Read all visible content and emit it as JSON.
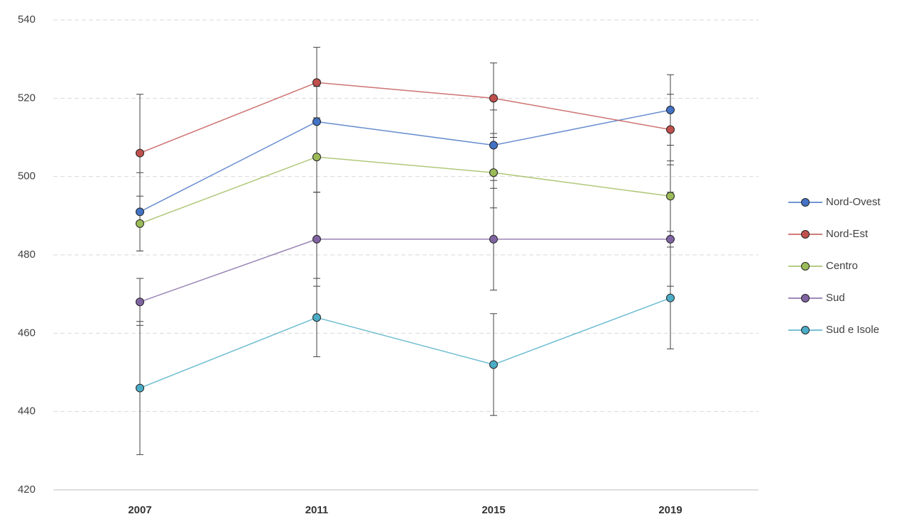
{
  "chart_data": {
    "type": "line",
    "categories": [
      "2007",
      "2011",
      "2015",
      "2019"
    ],
    "series": [
      {
        "name": "Nord-Ovest",
        "color": "#4472c4",
        "values": [
          491,
          514,
          508,
          517
        ],
        "errors": [
          10,
          9,
          9,
          9
        ]
      },
      {
        "name": "Nord-Est",
        "color": "#c0504d",
        "values": [
          506,
          524,
          520,
          512
        ],
        "errors": [
          15,
          9,
          9,
          9
        ]
      },
      {
        "name": "Centro",
        "color": "#9bbb59",
        "values": [
          488,
          505,
          501,
          495
        ],
        "errors": [
          7,
          9,
          9,
          9
        ]
      },
      {
        "name": "Sud",
        "color": "#8064a2",
        "values": [
          468,
          484,
          484,
          484
        ],
        "errors": [
          6,
          12,
          13,
          12
        ]
      },
      {
        "name": "Sud e Isole",
        "color": "#4bacc6",
        "values": [
          446,
          464,
          452,
          469
        ],
        "errors": [
          17,
          10,
          13,
          13
        ]
      }
    ],
    "ylim": [
      420,
      540
    ],
    "yticks": [
      420,
      440,
      460,
      480,
      500,
      520,
      540
    ],
    "grid": true,
    "legend": "right"
  }
}
